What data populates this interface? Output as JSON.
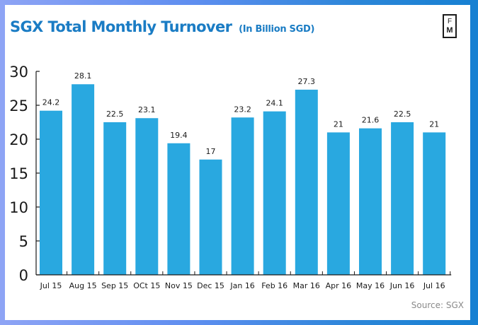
{
  "header": {
    "title": "SGX Total Monthly Turnover",
    "subtitle": "(In Billion SGD)",
    "logo_top": "F",
    "logo_bottom": "M"
  },
  "footer": {
    "source": "Source: SGX"
  },
  "colors": {
    "bar": "#29a8e0",
    "title": "#1a7cc4",
    "frame": "#3a86e0"
  },
  "chart_data": {
    "type": "bar",
    "title": "SGX Total Monthly Turnover (In Billion SGD)",
    "xlabel": "",
    "ylabel": "",
    "ylim": [
      0,
      30
    ],
    "yticks": [
      0,
      5,
      10,
      15,
      20,
      25,
      30
    ],
    "grid": false,
    "categories": [
      "Jul 15",
      "Aug 15",
      "Sep 15",
      "OCt 15",
      "Nov 15",
      "Dec 15",
      "Jan 16",
      "Feb 16",
      "Mar 16",
      "Apr 16",
      "May 16",
      "Jun 16",
      "Jul 16"
    ],
    "values": [
      24.2,
      28.1,
      22.5,
      23.1,
      19.4,
      17,
      23.2,
      24.1,
      27.3,
      21,
      21.6,
      22.5,
      21
    ],
    "data_labels": [
      "24.2",
      "28.1",
      "22.5",
      "23.1",
      "19.4",
      "17",
      "23.2",
      "24.1",
      "27.3",
      "21",
      "21.6",
      "22.5",
      "21"
    ],
    "source": "Source: SGX"
  }
}
